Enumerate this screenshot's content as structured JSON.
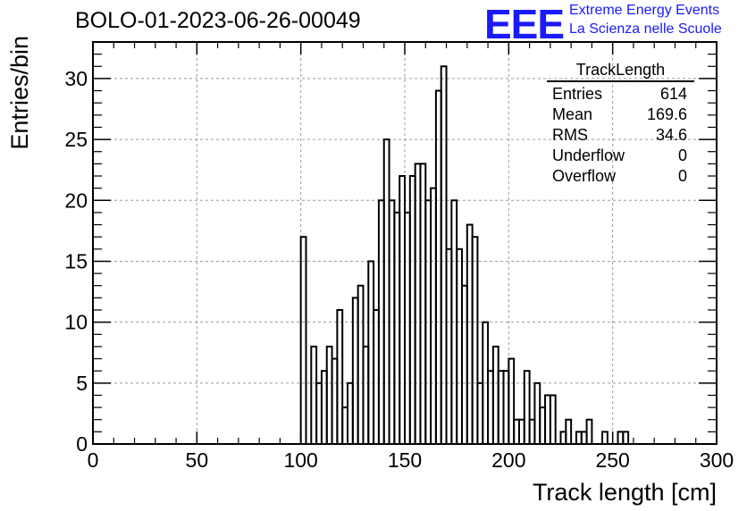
{
  "header": {
    "run_title": "BOLO-01-2023-06-26-00049",
    "logo_text": "EEE",
    "logo_line1": "Extreme Energy Events",
    "logo_line2": "La Scienza nelle Scuole"
  },
  "stats_box": {
    "title": "TrackLength",
    "rows": [
      {
        "label": "Entries",
        "value": "614"
      },
      {
        "label": "Mean",
        "value": "169.6"
      },
      {
        "label": "RMS",
        "value": "34.6"
      },
      {
        "label": "Underflow",
        "value": "0"
      },
      {
        "label": "Overflow",
        "value": "0"
      }
    ]
  },
  "colors": {
    "logo": "#1a1aff",
    "histogram_line": "#000000",
    "grid": "#9a9a9a"
  },
  "chart_data": {
    "type": "histogram",
    "title": "",
    "xlabel": "Track length [cm]",
    "ylabel": "Entries/bin",
    "xlim": [
      0,
      300
    ],
    "ylim": [
      0,
      33
    ],
    "grid": true,
    "bin_width": 2.5,
    "x_ticks": [
      "0",
      "50",
      "100",
      "150",
      "200",
      "250",
      "300"
    ],
    "y_ticks": [
      "0",
      "5",
      "10",
      "15",
      "20",
      "25",
      "30"
    ],
    "bins": [
      {
        "x_low": 0,
        "count": 0
      },
      {
        "x_low": 2.5,
        "count": 0
      },
      {
        "x_low": 5,
        "count": 0
      },
      {
        "x_low": 7.5,
        "count": 0
      },
      {
        "x_low": 10,
        "count": 0
      },
      {
        "x_low": 12.5,
        "count": 0
      },
      {
        "x_low": 15,
        "count": 0
      },
      {
        "x_low": 17.5,
        "count": 0
      },
      {
        "x_low": 20,
        "count": 0
      },
      {
        "x_low": 22.5,
        "count": 0
      },
      {
        "x_low": 25,
        "count": 0
      },
      {
        "x_low": 27.5,
        "count": 0
      },
      {
        "x_low": 30,
        "count": 0
      },
      {
        "x_low": 32.5,
        "count": 0
      },
      {
        "x_low": 35,
        "count": 0
      },
      {
        "x_low": 37.5,
        "count": 0
      },
      {
        "x_low": 40,
        "count": 0
      },
      {
        "x_low": 42.5,
        "count": 0
      },
      {
        "x_low": 45,
        "count": 0
      },
      {
        "x_low": 47.5,
        "count": 0
      },
      {
        "x_low": 50,
        "count": 0
      },
      {
        "x_low": 52.5,
        "count": 0
      },
      {
        "x_low": 55,
        "count": 0
      },
      {
        "x_low": 57.5,
        "count": 0
      },
      {
        "x_low": 60,
        "count": 0
      },
      {
        "x_low": 62.5,
        "count": 0
      },
      {
        "x_low": 65,
        "count": 0
      },
      {
        "x_low": 67.5,
        "count": 0
      },
      {
        "x_low": 70,
        "count": 0
      },
      {
        "x_low": 72.5,
        "count": 0
      },
      {
        "x_low": 75,
        "count": 0
      },
      {
        "x_low": 77.5,
        "count": 0
      },
      {
        "x_low": 80,
        "count": 0
      },
      {
        "x_low": 82.5,
        "count": 0
      },
      {
        "x_low": 85,
        "count": 0
      },
      {
        "x_low": 87.5,
        "count": 0
      },
      {
        "x_low": 90,
        "count": 0
      },
      {
        "x_low": 92.5,
        "count": 0
      },
      {
        "x_low": 95,
        "count": 0
      },
      {
        "x_low": 97.5,
        "count": 0
      },
      {
        "x_low": 100,
        "count": 17
      },
      {
        "x_low": 102.5,
        "count": 0
      },
      {
        "x_low": 105,
        "count": 8
      },
      {
        "x_low": 107.5,
        "count": 5
      },
      {
        "x_low": 110,
        "count": 6
      },
      {
        "x_low": 112.5,
        "count": 8
      },
      {
        "x_low": 115,
        "count": 7
      },
      {
        "x_low": 117.5,
        "count": 11
      },
      {
        "x_low": 120,
        "count": 3
      },
      {
        "x_low": 122.5,
        "count": 5
      },
      {
        "x_low": 125,
        "count": 12
      },
      {
        "x_low": 127.5,
        "count": 13
      },
      {
        "x_low": 130,
        "count": 8
      },
      {
        "x_low": 132.5,
        "count": 15
      },
      {
        "x_low": 135,
        "count": 11
      },
      {
        "x_low": 137.5,
        "count": 20
      },
      {
        "x_low": 140,
        "count": 25
      },
      {
        "x_low": 142.5,
        "count": 20
      },
      {
        "x_low": 145,
        "count": 19
      },
      {
        "x_low": 147.5,
        "count": 22
      },
      {
        "x_low": 150,
        "count": 19
      },
      {
        "x_low": 152.5,
        "count": 22
      },
      {
        "x_low": 155,
        "count": 23
      },
      {
        "x_low": 157.5,
        "count": 23
      },
      {
        "x_low": 160,
        "count": 20
      },
      {
        "x_low": 162.5,
        "count": 21
      },
      {
        "x_low": 165,
        "count": 29
      },
      {
        "x_low": 167.5,
        "count": 31
      },
      {
        "x_low": 170,
        "count": 16
      },
      {
        "x_low": 172.5,
        "count": 20
      },
      {
        "x_low": 175,
        "count": 16
      },
      {
        "x_low": 177.5,
        "count": 13
      },
      {
        "x_low": 180,
        "count": 18
      },
      {
        "x_low": 182.5,
        "count": 17
      },
      {
        "x_low": 185,
        "count": 5
      },
      {
        "x_low": 187.5,
        "count": 10
      },
      {
        "x_low": 190,
        "count": 6
      },
      {
        "x_low": 192.5,
        "count": 8
      },
      {
        "x_low": 195,
        "count": 6
      },
      {
        "x_low": 197.5,
        "count": 6
      },
      {
        "x_low": 200,
        "count": 7
      },
      {
        "x_low": 202.5,
        "count": 2
      },
      {
        "x_low": 205,
        "count": 2
      },
      {
        "x_low": 207.5,
        "count": 6
      },
      {
        "x_low": 210,
        "count": 2
      },
      {
        "x_low": 212.5,
        "count": 5
      },
      {
        "x_low": 215,
        "count": 3
      },
      {
        "x_low": 217.5,
        "count": 4
      },
      {
        "x_low": 220,
        "count": 4
      },
      {
        "x_low": 222.5,
        "count": 0
      },
      {
        "x_low": 225,
        "count": 1
      },
      {
        "x_low": 227.5,
        "count": 2
      },
      {
        "x_low": 230,
        "count": 0
      },
      {
        "x_low": 232.5,
        "count": 1
      },
      {
        "x_low": 235,
        "count": 1
      },
      {
        "x_low": 237.5,
        "count": 2
      },
      {
        "x_low": 240,
        "count": 0
      },
      {
        "x_low": 242.5,
        "count": 0
      },
      {
        "x_low": 245,
        "count": 1
      },
      {
        "x_low": 247.5,
        "count": 0
      },
      {
        "x_low": 250,
        "count": 0
      },
      {
        "x_low": 252.5,
        "count": 1
      },
      {
        "x_low": 255,
        "count": 1
      },
      {
        "x_low": 257.5,
        "count": 0
      }
    ]
  }
}
